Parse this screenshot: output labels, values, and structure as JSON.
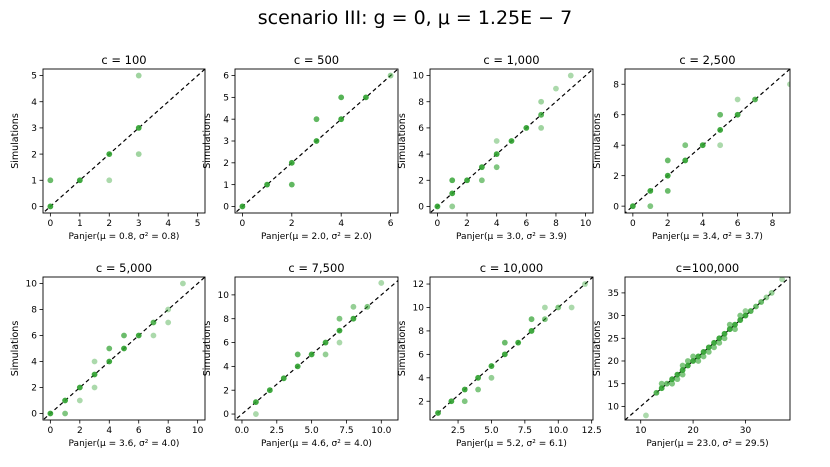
{
  "figure": {
    "suptitle": "scenario III: g = 0, μ = 1.25E − 7",
    "marker_color": "#2ca02c",
    "diagonal_color": "#000000"
  },
  "chart_data": [
    {
      "type": "scatter",
      "title": "c = 100",
      "xlabel": "Panjer(μ = 0.8, σ² = 0.8)",
      "ylabel": "Simulations",
      "xlim": [
        -0.25,
        5.25
      ],
      "ylim": [
        -0.25,
        5.25
      ],
      "xticks": [
        0,
        1,
        2,
        3,
        4,
        5
      ],
      "yticks": [
        0,
        1,
        2,
        3,
        4,
        5
      ],
      "diagonal": true,
      "points": [
        {
          "x": 0,
          "y": 0,
          "a": 0.9
        },
        {
          "x": 0,
          "y": 1,
          "a": 0.7
        },
        {
          "x": 1,
          "y": 1,
          "a": 0.9
        },
        {
          "x": 2,
          "y": 2,
          "a": 0.9
        },
        {
          "x": 2,
          "y": 1,
          "a": 0.4
        },
        {
          "x": 3,
          "y": 3,
          "a": 0.9
        },
        {
          "x": 3,
          "y": 2,
          "a": 0.45
        },
        {
          "x": 3,
          "y": 5,
          "a": 0.45
        }
      ]
    },
    {
      "type": "scatter",
      "title": "c = 500",
      "xlabel": "Panjer(μ = 2.0, σ² = 2.0)",
      "ylabel": "Simulations",
      "xlim": [
        -0.3,
        6.3
      ],
      "ylim": [
        -0.3,
        6.3
      ],
      "xticks": [
        0,
        2,
        4,
        6
      ],
      "yticks": [
        0,
        1,
        2,
        3,
        4,
        5,
        6
      ],
      "diagonal": true,
      "points": [
        {
          "x": 0,
          "y": 0,
          "a": 0.9
        },
        {
          "x": 1,
          "y": 1,
          "a": 0.9
        },
        {
          "x": 2,
          "y": 2,
          "a": 0.9
        },
        {
          "x": 2,
          "y": 1,
          "a": 0.75
        },
        {
          "x": 3,
          "y": 3,
          "a": 0.9
        },
        {
          "x": 3,
          "y": 4,
          "a": 0.75
        },
        {
          "x": 4,
          "y": 4,
          "a": 0.9
        },
        {
          "x": 4,
          "y": 5,
          "a": 0.8
        },
        {
          "x": 5,
          "y": 5,
          "a": 0.9
        },
        {
          "x": 6,
          "y": 6,
          "a": 0.5
        }
      ]
    },
    {
      "type": "scatter",
      "title": "c = 1,000",
      "xlabel": "Panjer(μ = 3.0, σ² = 3.9)",
      "ylabel": "Simulations",
      "xlim": [
        -0.5,
        10.5
      ],
      "ylim": [
        -0.5,
        10.5
      ],
      "xticks": [
        0,
        2,
        4,
        6,
        8,
        10
      ],
      "yticks": [
        0,
        2,
        4,
        6,
        8,
        10
      ],
      "diagonal": true,
      "points": [
        {
          "x": 0,
          "y": 0,
          "a": 0.9
        },
        {
          "x": 1,
          "y": 1,
          "a": 0.9
        },
        {
          "x": 1,
          "y": 2,
          "a": 0.8
        },
        {
          "x": 1,
          "y": 0,
          "a": 0.5
        },
        {
          "x": 2,
          "y": 2,
          "a": 0.9
        },
        {
          "x": 3,
          "y": 3,
          "a": 0.9
        },
        {
          "x": 3,
          "y": 2,
          "a": 0.6
        },
        {
          "x": 4,
          "y": 4,
          "a": 0.9
        },
        {
          "x": 4,
          "y": 3,
          "a": 0.6
        },
        {
          "x": 4,
          "y": 5,
          "a": 0.4
        },
        {
          "x": 5,
          "y": 5,
          "a": 0.9
        },
        {
          "x": 6,
          "y": 6,
          "a": 0.9
        },
        {
          "x": 7,
          "y": 7,
          "a": 0.8
        },
        {
          "x": 7,
          "y": 6,
          "a": 0.45
        },
        {
          "x": 7,
          "y": 8,
          "a": 0.45
        },
        {
          "x": 8,
          "y": 9,
          "a": 0.4
        },
        {
          "x": 9,
          "y": 10,
          "a": 0.4
        }
      ]
    },
    {
      "type": "scatter",
      "title": "c = 2,500",
      "xlabel": "Panjer(μ = 3.4, σ² = 3.7)",
      "ylabel": "Simulations",
      "xlim": [
        -0.45,
        9.0
      ],
      "ylim": [
        -0.45,
        9.0
      ],
      "xticks": [
        0,
        2,
        4,
        6,
        8
      ],
      "yticks": [
        0,
        2,
        4,
        6,
        8
      ],
      "diagonal": true,
      "points": [
        {
          "x": 0,
          "y": 0,
          "a": 0.9
        },
        {
          "x": 1,
          "y": 1,
          "a": 0.9
        },
        {
          "x": 1,
          "y": 0,
          "a": 0.6
        },
        {
          "x": 2,
          "y": 2,
          "a": 0.9
        },
        {
          "x": 2,
          "y": 1,
          "a": 0.7
        },
        {
          "x": 2,
          "y": 3,
          "a": 0.7
        },
        {
          "x": 3,
          "y": 3,
          "a": 0.9
        },
        {
          "x": 3,
          "y": 4,
          "a": 0.6
        },
        {
          "x": 4,
          "y": 4,
          "a": 0.9
        },
        {
          "x": 5,
          "y": 5,
          "a": 0.9
        },
        {
          "x": 5,
          "y": 6,
          "a": 0.7
        },
        {
          "x": 5,
          "y": 4,
          "a": 0.4
        },
        {
          "x": 6,
          "y": 6,
          "a": 0.9
        },
        {
          "x": 6,
          "y": 7,
          "a": 0.4
        },
        {
          "x": 7,
          "y": 7,
          "a": 0.8
        },
        {
          "x": 9,
          "y": 8,
          "a": 0.4
        }
      ]
    },
    {
      "type": "scatter",
      "title": "c = 5,000",
      "xlabel": "Panjer(μ = 3.6, σ² = 4.0)",
      "ylabel": "Simulations",
      "xlim": [
        -0.5,
        10.5
      ],
      "ylim": [
        -0.5,
        10.5
      ],
      "xticks": [
        0,
        2,
        4,
        6,
        8,
        10
      ],
      "yticks": [
        0,
        2,
        4,
        6,
        8,
        10
      ],
      "diagonal": true,
      "points": [
        {
          "x": 0,
          "y": 0,
          "a": 0.9
        },
        {
          "x": 1,
          "y": 1,
          "a": 0.9
        },
        {
          "x": 1,
          "y": 0,
          "a": 0.6
        },
        {
          "x": 2,
          "y": 2,
          "a": 0.9
        },
        {
          "x": 2,
          "y": 1,
          "a": 0.4
        },
        {
          "x": 3,
          "y": 3,
          "a": 0.9
        },
        {
          "x": 3,
          "y": 2,
          "a": 0.4
        },
        {
          "x": 3,
          "y": 4,
          "a": 0.4
        },
        {
          "x": 4,
          "y": 4,
          "a": 0.9
        },
        {
          "x": 4,
          "y": 5,
          "a": 0.7
        },
        {
          "x": 5,
          "y": 5,
          "a": 0.9
        },
        {
          "x": 5,
          "y": 6,
          "a": 0.7
        },
        {
          "x": 6,
          "y": 6,
          "a": 0.9
        },
        {
          "x": 7,
          "y": 7,
          "a": 0.8
        },
        {
          "x": 7,
          "y": 6,
          "a": 0.4
        },
        {
          "x": 8,
          "y": 7,
          "a": 0.4
        },
        {
          "x": 8,
          "y": 8,
          "a": 0.4
        },
        {
          "x": 9,
          "y": 10,
          "a": 0.4
        }
      ]
    },
    {
      "type": "scatter",
      "title": "c = 7,500",
      "xlabel": "Panjer(μ = 4.6, σ² = 4.0)",
      "ylabel": "Simulations",
      "xlim": [
        -0.5,
        11.2
      ],
      "ylim": [
        -0.5,
        11.5
      ],
      "xticks": [
        0.0,
        2.5,
        5.0,
        7.5,
        10.0
      ],
      "yticks": [
        0,
        2,
        4,
        6,
        8,
        10
      ],
      "xtick_labels": [
        "0.0",
        "2.5",
        "5.0",
        "7.5",
        "10.0"
      ],
      "diagonal": true,
      "points": [
        {
          "x": 1,
          "y": 1,
          "a": 0.9
        },
        {
          "x": 1,
          "y": 0,
          "a": 0.4
        },
        {
          "x": 2,
          "y": 2,
          "a": 0.9
        },
        {
          "x": 3,
          "y": 3,
          "a": 0.9
        },
        {
          "x": 4,
          "y": 4,
          "a": 0.9
        },
        {
          "x": 4,
          "y": 5,
          "a": 0.75
        },
        {
          "x": 5,
          "y": 5,
          "a": 0.9
        },
        {
          "x": 6,
          "y": 6,
          "a": 0.9
        },
        {
          "x": 6,
          "y": 5,
          "a": 0.5
        },
        {
          "x": 7,
          "y": 7,
          "a": 0.9
        },
        {
          "x": 7,
          "y": 8,
          "a": 0.6
        },
        {
          "x": 7,
          "y": 6,
          "a": 0.4
        },
        {
          "x": 8,
          "y": 8,
          "a": 0.9
        },
        {
          "x": 8,
          "y": 9,
          "a": 0.5
        },
        {
          "x": 9,
          "y": 9,
          "a": 0.6
        },
        {
          "x": 10,
          "y": 11,
          "a": 0.4
        }
      ]
    },
    {
      "type": "scatter",
      "title": "c = 10,000",
      "xlabel": "Panjer(μ = 5.2, σ² = 6.1)",
      "ylabel": "Simulations",
      "xlim": [
        0.4,
        12.6
      ],
      "ylim": [
        0.4,
        12.6
      ],
      "xticks": [
        2.5,
        5.0,
        7.5,
        10.0,
        12.5
      ],
      "yticks": [
        2,
        4,
        6,
        8,
        10,
        12
      ],
      "xtick_labels": [
        "2.5",
        "5.0",
        "7.5",
        "10.0",
        "12.5"
      ],
      "diagonal": true,
      "points": [
        {
          "x": 1,
          "y": 1,
          "a": 0.9
        },
        {
          "x": 2,
          "y": 2,
          "a": 0.9
        },
        {
          "x": 3,
          "y": 3,
          "a": 0.9
        },
        {
          "x": 3,
          "y": 2,
          "a": 0.6
        },
        {
          "x": 4,
          "y": 4,
          "a": 0.9
        },
        {
          "x": 4,
          "y": 3,
          "a": 0.6
        },
        {
          "x": 5,
          "y": 5,
          "a": 0.9
        },
        {
          "x": 5,
          "y": 4,
          "a": 0.5
        },
        {
          "x": 6,
          "y": 6,
          "a": 0.9
        },
        {
          "x": 6,
          "y": 7,
          "a": 0.7
        },
        {
          "x": 7,
          "y": 7,
          "a": 0.9
        },
        {
          "x": 8,
          "y": 8,
          "a": 0.9
        },
        {
          "x": 8,
          "y": 9,
          "a": 0.7
        },
        {
          "x": 9,
          "y": 9,
          "a": 0.6
        },
        {
          "x": 9,
          "y": 10,
          "a": 0.4
        },
        {
          "x": 10,
          "y": 10,
          "a": 0.6
        },
        {
          "x": 11,
          "y": 10,
          "a": 0.4
        },
        {
          "x": 12,
          "y": 12,
          "a": 0.4
        }
      ]
    },
    {
      "type": "scatter",
      "title": "c=100,000",
      "xlabel": "Panjer(μ = 23.0, σ² = 29.5)",
      "ylabel": "Simulations",
      "xlim": [
        7.0,
        38.5
      ],
      "ylim": [
        7.0,
        38.5
      ],
      "xticks": [
        10,
        20,
        30
      ],
      "yticks": [
        10,
        15,
        20,
        25,
        30,
        35
      ],
      "diagonal": true,
      "points": [
        {
          "x": 11,
          "y": 8,
          "a": 0.4
        },
        {
          "x": 13,
          "y": 13,
          "a": 0.8
        },
        {
          "x": 14,
          "y": 14,
          "a": 0.9
        },
        {
          "x": 14,
          "y": 15,
          "a": 0.6
        },
        {
          "x": 15,
          "y": 15,
          "a": 0.7
        },
        {
          "x": 16,
          "y": 15,
          "a": 0.6
        },
        {
          "x": 16,
          "y": 16,
          "a": 0.9
        },
        {
          "x": 17,
          "y": 17,
          "a": 0.9
        },
        {
          "x": 17,
          "y": 16,
          "a": 0.6
        },
        {
          "x": 18,
          "y": 17,
          "a": 0.6
        },
        {
          "x": 18,
          "y": 18,
          "a": 0.9
        },
        {
          "x": 18,
          "y": 19,
          "a": 0.6
        },
        {
          "x": 19,
          "y": 19,
          "a": 0.9
        },
        {
          "x": 19,
          "y": 20,
          "a": 0.6
        },
        {
          "x": 20,
          "y": 20,
          "a": 0.9
        },
        {
          "x": 20,
          "y": 21,
          "a": 0.6
        },
        {
          "x": 21,
          "y": 21,
          "a": 0.9
        },
        {
          "x": 21,
          "y": 20,
          "a": 0.6
        },
        {
          "x": 22,
          "y": 22,
          "a": 0.9
        },
        {
          "x": 22,
          "y": 21,
          "a": 0.6
        },
        {
          "x": 23,
          "y": 23,
          "a": 0.9
        },
        {
          "x": 23,
          "y": 22,
          "a": 0.6
        },
        {
          "x": 24,
          "y": 24,
          "a": 0.9
        },
        {
          "x": 24,
          "y": 23,
          "a": 0.6
        },
        {
          "x": 25,
          "y": 25,
          "a": 0.9
        },
        {
          "x": 25,
          "y": 24,
          "a": 0.6
        },
        {
          "x": 26,
          "y": 26,
          "a": 0.9
        },
        {
          "x": 26,
          "y": 25,
          "a": 0.6
        },
        {
          "x": 27,
          "y": 27,
          "a": 0.9
        },
        {
          "x": 27,
          "y": 28,
          "a": 0.6
        },
        {
          "x": 28,
          "y": 28,
          "a": 0.9
        },
        {
          "x": 28,
          "y": 27,
          "a": 0.6
        },
        {
          "x": 29,
          "y": 29,
          "a": 0.9
        },
        {
          "x": 29,
          "y": 30,
          "a": 0.6
        },
        {
          "x": 30,
          "y": 30,
          "a": 0.9
        },
        {
          "x": 30,
          "y": 31,
          "a": 0.5
        },
        {
          "x": 31,
          "y": 31,
          "a": 0.8
        },
        {
          "x": 32,
          "y": 32,
          "a": 0.7
        },
        {
          "x": 33,
          "y": 33,
          "a": 0.7
        },
        {
          "x": 34,
          "y": 34,
          "a": 0.5
        },
        {
          "x": 35,
          "y": 35,
          "a": 0.5
        },
        {
          "x": 37,
          "y": 38,
          "a": 0.4
        }
      ]
    }
  ]
}
